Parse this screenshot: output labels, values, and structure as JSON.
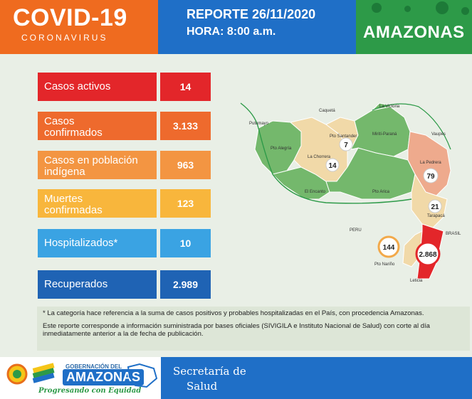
{
  "header": {
    "title": "COVID-19",
    "subtitle": "CORONAVIRUS",
    "report_line": "REPORTE 26/11/2020",
    "time_line": "HORA: 8:00 a.m.",
    "region": "AMAZONAS"
  },
  "stats": [
    {
      "label": "Casos activos",
      "value": "14",
      "color": "#e3262a"
    },
    {
      "label": "Casos confirmados",
      "value": "3.133",
      "color": "#ee6a2d"
    },
    {
      "label": "Casos en población indígena",
      "value": "963",
      "color": "#f39542"
    },
    {
      "label": "Muertes confirmadas",
      "value": "123",
      "color": "#f8b63c"
    },
    {
      "label": "Hospitalizados*",
      "value": "10",
      "color": "#3aa3e3"
    },
    {
      "label": "Recuperados",
      "value": "2.989",
      "color": "#1f63b4"
    }
  ],
  "map": {
    "labels": {
      "caqueta": "Caquetá",
      "putumayo": "Putumayo",
      "vaupes": "Vaupés",
      "la_victoria": "La Victoria",
      "pto_santander": "Pto Santander",
      "mirití": "Mirití-Paraná",
      "pto_alegria": "Pto Alegría",
      "la_chorrera": "La Chorrera",
      "la_pedrera": "La Pedrera",
      "el_encanto": "El Encanto",
      "pto_arica": "Pto Arica",
      "tarapaca": "Tarapacá",
      "peru": "PERU",
      "brasil": "BRASIL",
      "pto_narino": "Pto Nariño",
      "leticia": "Leticia"
    },
    "counts": {
      "pto_santander": "7",
      "la_chorrera": "14",
      "la_pedrera": "79",
      "tarapaca": "21",
      "pto_narino": "144",
      "leticia": "2.868"
    }
  },
  "notes": {
    "note1": "* La categoría hace referencia a la suma de casos positivos y probables hospitalizadas en el País, con procedencia Amazonas.",
    "note2": "Este reporte corresponde a información suministrada por bases oficiales (SIVIGILA e Instituto Nacional de Salud) con corte al día inmediatamente anterior a la de fecha de publicación."
  },
  "footer": {
    "gob": "GOBERNACIÓN DEL",
    "amazonas": "AMAZONAS",
    "slogan": "Progresando con Equidad",
    "secretaria_line1": "Secretaría de",
    "secretaria_line2": "Salud"
  }
}
